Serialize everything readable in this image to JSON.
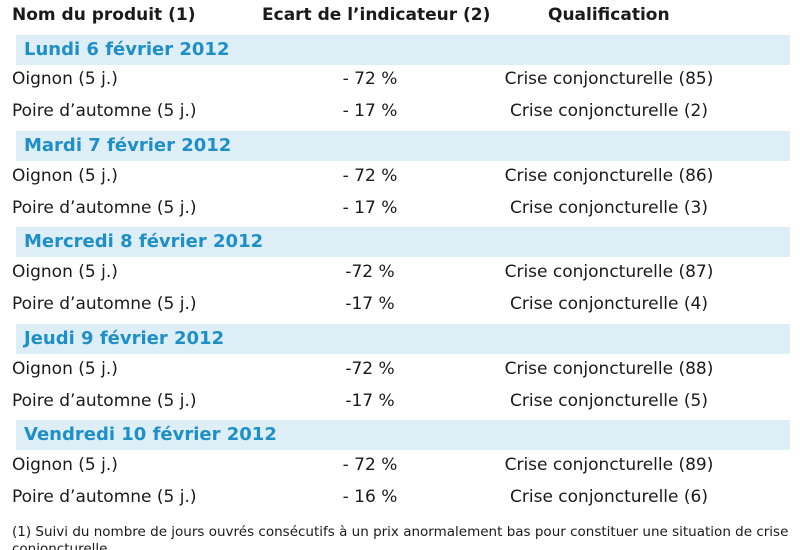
{
  "header": {
    "product": "Nom du produit (1)",
    "ecart": "Ecart de l’indicateur (2)",
    "qualification": "Qualification"
  },
  "days": [
    {
      "label": "Lundi 6 février 2012",
      "rows": [
        {
          "product": "Oignon (5 j.)",
          "ecart": "- 72 %",
          "qualification": "Crise conjoncturelle (85)"
        },
        {
          "product": "Poire d’automne (5 j.)",
          "ecart": "- 17 %",
          "qualification": "Crise conjoncturelle (2)"
        }
      ]
    },
    {
      "label": "Mardi 7 février 2012",
      "rows": [
        {
          "product": "Oignon (5 j.)",
          "ecart": "- 72 %",
          "qualification": "Crise conjoncturelle (86)"
        },
        {
          "product": "Poire d’automne (5 j.)",
          "ecart": "- 17 %",
          "qualification": "Crise conjoncturelle (3)"
        }
      ]
    },
    {
      "label": "Mercredi 8 février 2012",
      "rows": [
        {
          "product": "Oignon (5 j.)",
          "ecart": "-72 %",
          "qualification": "Crise conjoncturelle (87)"
        },
        {
          "product": "Poire d’automne (5 j.)",
          "ecart": "-17 %",
          "qualification": "Crise conjoncturelle (4)"
        }
      ]
    },
    {
      "label": "Jeudi 9 février 2012",
      "rows": [
        {
          "product": "Oignon (5 j.)",
          "ecart": "-72 %",
          "qualification": "Crise conjoncturelle (88)"
        },
        {
          "product": "Poire d’automne (5 j.)",
          "ecart": "-17 %",
          "qualification": "Crise conjoncturelle (5)"
        }
      ]
    },
    {
      "label": "Vendredi 10 février 2012",
      "rows": [
        {
          "product": "Oignon (5 j.)",
          "ecart": "- 72 %",
          "qualification": "Crise conjoncturelle (89)"
        },
        {
          "product": "Poire d’automne (5 j.)",
          "ecart": "- 16 %",
          "qualification": "Crise conjoncturelle (6)"
        }
      ]
    }
  ],
  "footnote": "(1) Suivi du nombre de jours ouvrés consécutifs à un prix anormalement bas pour constituer une situation de crise conjoncturelle."
}
